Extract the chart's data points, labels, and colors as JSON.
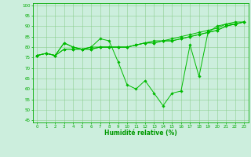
{
  "title": "",
  "xlabel": "Humidité relative (%)",
  "ylabel": "",
  "background_color": "#cceedd",
  "grid_color": "#88cc88",
  "line_color": "#00bb00",
  "xlim": [
    -0.5,
    23.5
  ],
  "ylim": [
    44,
    101
  ],
  "xticks": [
    0,
    1,
    2,
    3,
    4,
    5,
    6,
    7,
    8,
    9,
    10,
    11,
    12,
    13,
    14,
    15,
    16,
    17,
    18,
    19,
    20,
    21,
    22,
    23
  ],
  "yticks": [
    45,
    50,
    55,
    60,
    65,
    70,
    75,
    80,
    85,
    90,
    95,
    100
  ],
  "series": [
    [
      76,
      77,
      76,
      82,
      80,
      79,
      80,
      84,
      83,
      73,
      62,
      60,
      64,
      58,
      52,
      58,
      59,
      81,
      66,
      87,
      90,
      91,
      91,
      92
    ],
    [
      76,
      77,
      76,
      82,
      80,
      79,
      80,
      80,
      80,
      80,
      80,
      81,
      82,
      83,
      83,
      84,
      85,
      86,
      87,
      88,
      89,
      91,
      92,
      92
    ],
    [
      76,
      77,
      76,
      79,
      79,
      79,
      79,
      80,
      80,
      80,
      80,
      81,
      82,
      82,
      83,
      83,
      84,
      85,
      86,
      87,
      88,
      90,
      91,
      92
    ],
    [
      76,
      77,
      76,
      79,
      79,
      79,
      79,
      80,
      80,
      80,
      80,
      81,
      82,
      82,
      83,
      83,
      84,
      85,
      86,
      87,
      88,
      90,
      91,
      92
    ]
  ]
}
